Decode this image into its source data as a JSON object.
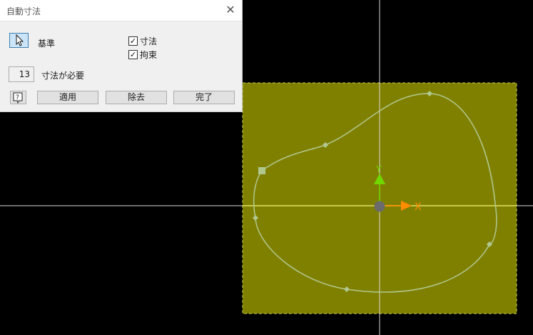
{
  "dialog": {
    "title": "自動寸法",
    "close_icon": "close-icon",
    "selection_icon": "arrow-cursor-icon",
    "curves_label": "基準",
    "dimensions_checkbox": {
      "label": "寸法",
      "checked": true
    },
    "constraints_checkbox": {
      "label": "拘束",
      "checked": true
    },
    "required_count": "13",
    "required_label": "寸法が必要",
    "help_icon": "help-icon",
    "buttons": {
      "apply": "適用",
      "remove": "除去",
      "done": "完了"
    }
  },
  "viewport": {
    "background_color": "#000000",
    "sketch_fill_color": "#808000",
    "profile_color": "#b0c890",
    "axis_color": "#d8d8d8",
    "x_axis_label": "X",
    "y_axis_label": "Y",
    "x_axis_color": "#ff8c00",
    "y_axis_color": "#70d800"
  }
}
